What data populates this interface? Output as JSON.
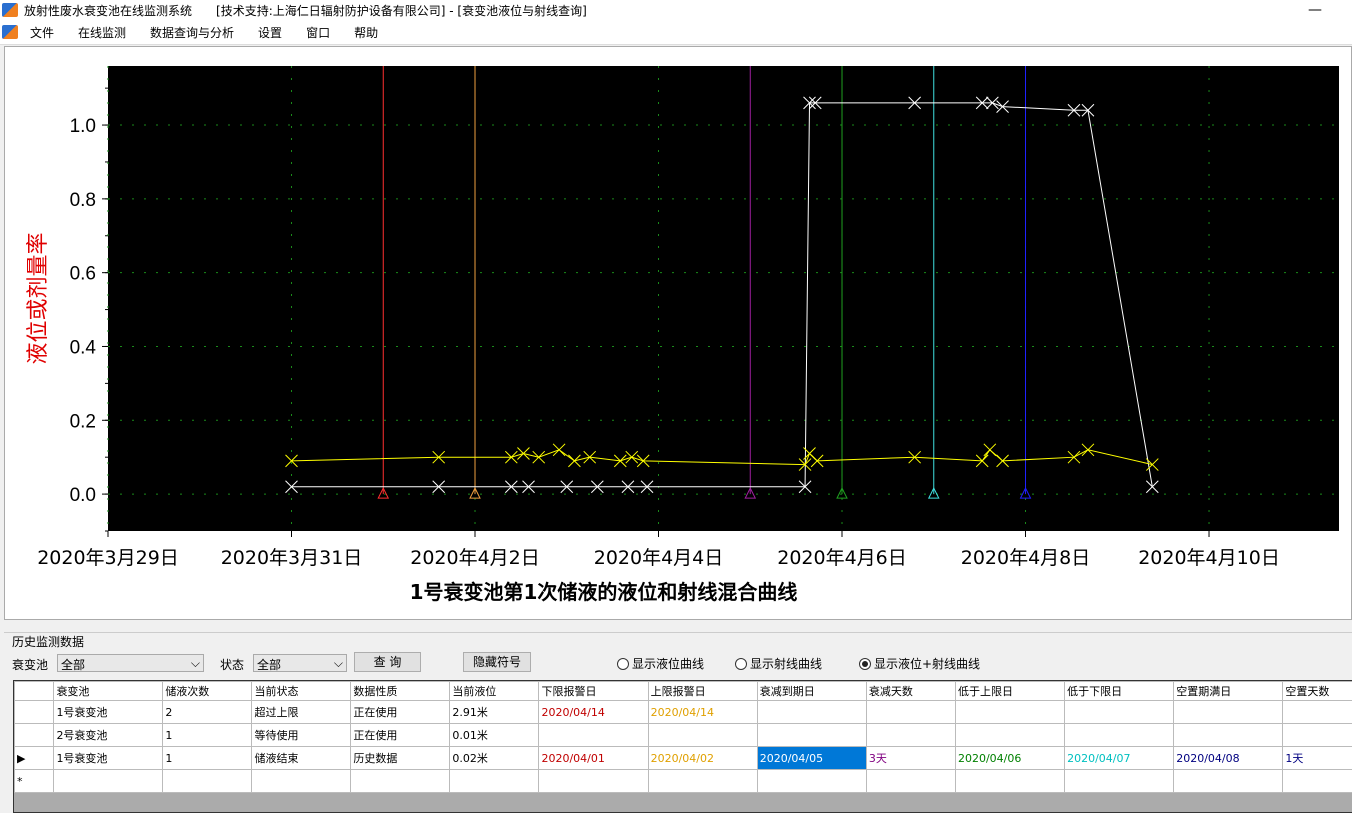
{
  "window": {
    "title": "放射性废水衰变池在线监测系统",
    "support": "[技术支持:上海仁日辐射防护设备有限公司] - [衰变池液位与射线查询]"
  },
  "menu": [
    "文件",
    "在线监测",
    "数据查询与分析",
    "设置",
    "窗口",
    "帮助"
  ],
  "chart_data": {
    "type": "line",
    "title": "1号衰变池第1次储液的液位和射线混合曲线",
    "ylabel": "液位或剂量率",
    "ylim": [
      -0.1,
      1.16
    ],
    "yticks": [
      0.0,
      0.2,
      0.4,
      0.6,
      0.8,
      1.0
    ],
    "ytick_labels": [
      "0.0",
      "0.2",
      "0.4",
      "0.6",
      "0.8",
      "1.0"
    ],
    "xlim": [
      "2020-03-29",
      "2020-04-11 10:00"
    ],
    "xticks": [
      "2020-03-29",
      "2020-03-31",
      "2020-04-02",
      "2020-04-04",
      "2020-04-06",
      "2020-04-08",
      "2020-04-10"
    ],
    "xtick_labels": [
      "2020年3月29日",
      "2020年3月31日",
      "2020年4月2日",
      "2020年4月4日",
      "2020年4月6日",
      "2020年4月8日",
      "2020年4月10日"
    ],
    "grid": true,
    "background": "#000000",
    "series": [
      {
        "color": "#ffffff",
        "marker": "x",
        "points": [
          [
            "2020-03-31 00:00",
            0.02
          ],
          [
            "2020-04-01 14:30",
            0.02
          ],
          [
            "2020-04-02 09:30",
            0.02
          ],
          [
            "2020-04-02 14:00",
            0.02
          ],
          [
            "2020-04-03 00:00",
            0.02
          ],
          [
            "2020-04-03 08:00",
            0.02
          ],
          [
            "2020-04-03 16:00",
            0.02
          ],
          [
            "2020-04-03 21:00",
            0.02
          ],
          [
            "2020-04-05 14:20",
            0.02
          ],
          [
            "2020-04-05 15:30",
            1.06
          ],
          [
            "2020-04-05 17:00",
            1.06
          ],
          [
            "2020-04-06 19:00",
            1.06
          ],
          [
            "2020-04-07 12:40",
            1.06
          ],
          [
            "2020-04-07 15:20",
            1.06
          ],
          [
            "2020-04-07 18:00",
            1.05
          ],
          [
            "2020-04-08 12:40",
            1.04
          ],
          [
            "2020-04-08 16:20",
            1.04
          ],
          [
            "2020-04-09 09:10",
            0.02
          ]
        ]
      },
      {
        "color": "#ffff00",
        "marker": "x",
        "points": [
          [
            "2020-03-31 00:00",
            0.09
          ],
          [
            "2020-04-01 14:30",
            0.1
          ],
          [
            "2020-04-02 09:30",
            0.1
          ],
          [
            "2020-04-02 12:40",
            0.11
          ],
          [
            "2020-04-02 16:40",
            0.1
          ],
          [
            "2020-04-02 22:00",
            0.12
          ],
          [
            "2020-04-03 02:00",
            0.09
          ],
          [
            "2020-04-03 06:00",
            0.1
          ],
          [
            "2020-04-03 14:00",
            0.09
          ],
          [
            "2020-04-03 17:00",
            0.1
          ],
          [
            "2020-04-03 20:00",
            0.09
          ],
          [
            "2020-04-05 14:20",
            0.08
          ],
          [
            "2020-04-05 15:30",
            0.11
          ],
          [
            "2020-04-05 17:30",
            0.09
          ],
          [
            "2020-04-06 19:00",
            0.1
          ],
          [
            "2020-04-07 12:40",
            0.09
          ],
          [
            "2020-04-07 14:40",
            0.12
          ],
          [
            "2020-04-07 18:00",
            0.09
          ],
          [
            "2020-04-08 12:40",
            0.1
          ],
          [
            "2020-04-08 16:20",
            0.12
          ],
          [
            "2020-04-09 09:10",
            0.08
          ]
        ]
      }
    ],
    "markers": [
      {
        "date": "2020-04-01",
        "color": "#ff3030"
      },
      {
        "date": "2020-04-02",
        "color": "#f0a040"
      },
      {
        "date": "2020-04-05",
        "color": "#a020a0"
      },
      {
        "date": "2020-04-06",
        "color": "#20a020"
      },
      {
        "date": "2020-04-07",
        "color": "#40e0e0"
      },
      {
        "date": "2020-04-08",
        "color": "#2020ff"
      }
    ]
  },
  "panel": {
    "group_title": "历史监测数据",
    "pool_label": "衰变池",
    "pool_value": "全部",
    "status_label": "状态",
    "status_value": "全部",
    "query_button": "查 询",
    "hide_button": "隐藏符号",
    "radios": [
      {
        "label": "显示液位曲线",
        "checked": false
      },
      {
        "label": "显示射线曲线",
        "checked": false
      },
      {
        "label": "显示液位+射线曲线",
        "checked": true
      }
    ]
  },
  "table": {
    "columns": [
      "衰变池",
      "储液次数",
      "当前状态",
      "数据性质",
      "当前液位",
      "下限报警日",
      "上限报警日",
      "衰减到期日",
      "衰减天数",
      "低于上限日",
      "低于下限日",
      "空置期满日",
      "空置天数"
    ],
    "rows": [
      [
        "1号衰变池",
        "2",
        "超过上限",
        "正在使用",
        "2.91米",
        "2020/04/14",
        "2020/04/14",
        "",
        "",
        "",
        "",
        "",
        ""
      ],
      [
        "2号衰变池",
        "1",
        "等待使用",
        "正在使用",
        "0.01米",
        "",
        "",
        "",
        "",
        "",
        "",
        "",
        ""
      ],
      [
        "1号衰变池",
        "1",
        "储液结束",
        "历史数据",
        "0.02米",
        "2020/04/01",
        "2020/04/02",
        "2020/04/05",
        "3天",
        "2020/04/06",
        "2020/04/07",
        "2020/04/08",
        "1天"
      ]
    ],
    "column_colors": [
      "#000",
      "#000",
      "#000",
      "#000",
      "#000",
      "#c00000",
      "#e0a000",
      "#000",
      "#800080",
      "#008000",
      "#00c0c0",
      "#000080",
      "#000080"
    ],
    "selected_row": 2,
    "selected_col": 7,
    "selected_color": "#0078d7"
  }
}
